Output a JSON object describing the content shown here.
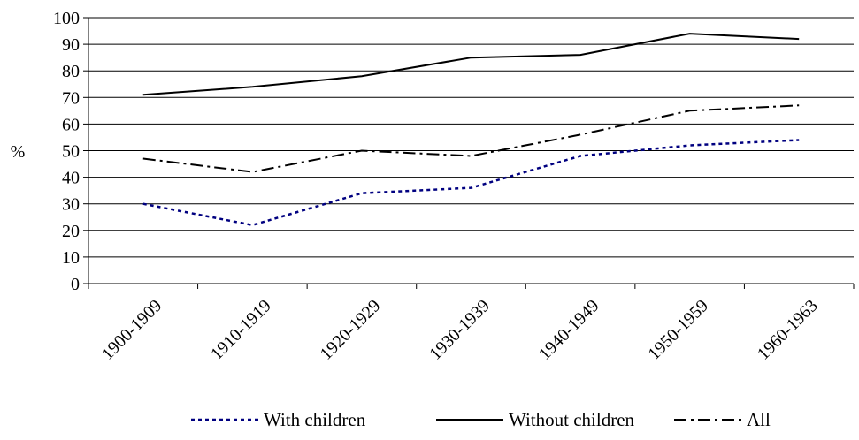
{
  "chart_data": {
    "type": "line",
    "title": "",
    "xlabel": "",
    "ylabel": "%",
    "categories": [
      "1900-1909",
      "1910-1919",
      "1920-1929",
      "1930-1939",
      "1940-1949",
      "1950-1959",
      "1960-1963"
    ],
    "ylim": [
      0,
      100
    ],
    "yticks": [
      "0",
      "10",
      "20",
      "30",
      "40",
      "50",
      "60",
      "70",
      "80",
      "90",
      "100"
    ],
    "grid": "horizontal",
    "legend": "bottom",
    "series": [
      {
        "name": "With children",
        "values": [
          30,
          22,
          34,
          36,
          48,
          52,
          54
        ],
        "color": "#000080",
        "style": "dotted"
      },
      {
        "name": "Without children",
        "values": [
          71,
          74,
          78,
          85,
          86,
          94,
          92
        ],
        "color": "#000000",
        "style": "solid"
      },
      {
        "name": "All",
        "values": [
          47,
          42,
          50,
          48,
          56,
          65,
          67
        ],
        "color": "#000000",
        "style": "dash-dot"
      }
    ]
  }
}
